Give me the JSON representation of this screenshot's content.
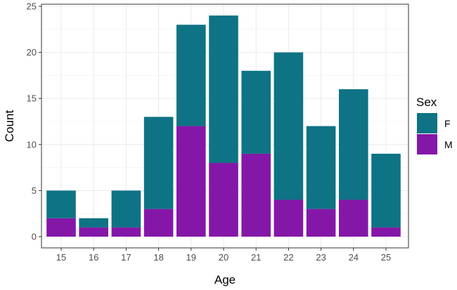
{
  "chart_data": {
    "type": "bar",
    "stacked": true,
    "xlabel": "Age",
    "ylabel": "Count",
    "categories": [
      "15",
      "16",
      "17",
      "18",
      "19",
      "20",
      "21",
      "22",
      "23",
      "24",
      "25"
    ],
    "series": [
      {
        "name": "M",
        "color": "#8517a8",
        "values": [
          2,
          1,
          1,
          3,
          12,
          8,
          9,
          4,
          3,
          4,
          1
        ]
      },
      {
        "name": "F",
        "color": "#0e7384",
        "values": [
          3,
          1,
          4,
          10,
          11,
          16,
          9,
          16,
          9,
          12,
          8
        ]
      }
    ],
    "ylim": [
      0,
      25
    ],
    "yticks": [
      0,
      5,
      10,
      15,
      20,
      25
    ],
    "grid": true,
    "legend": {
      "title": "Sex",
      "placement": "right",
      "order": [
        "F",
        "M"
      ]
    }
  }
}
